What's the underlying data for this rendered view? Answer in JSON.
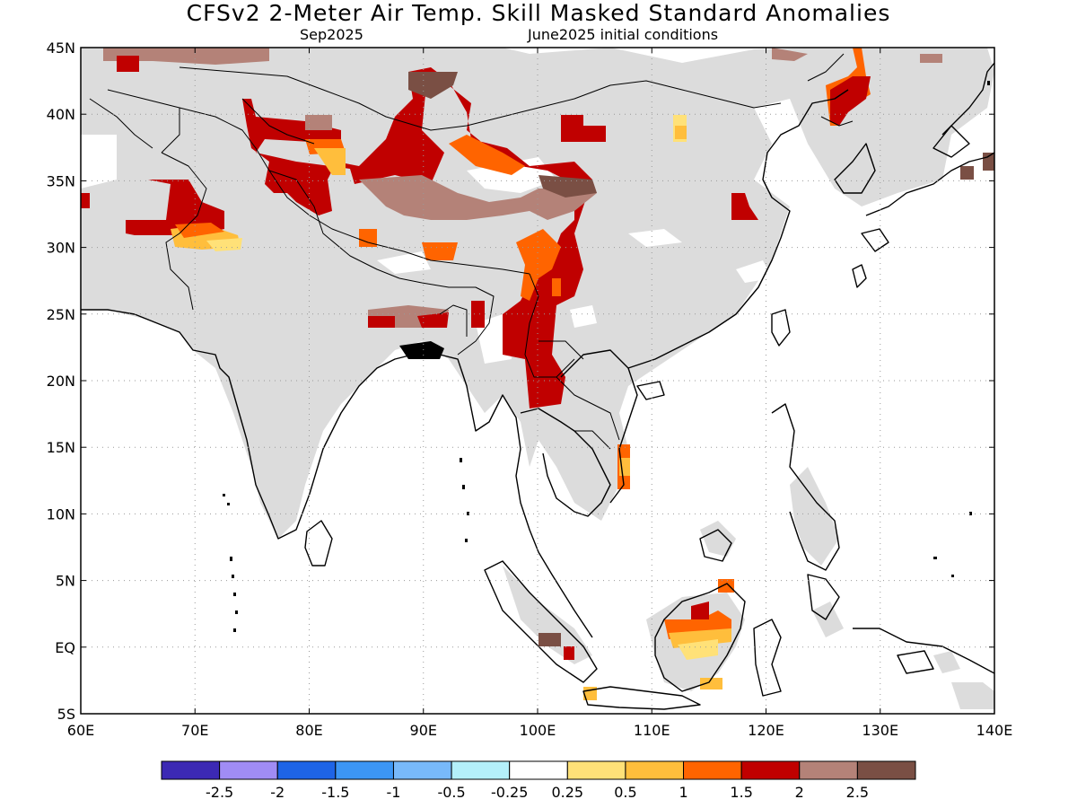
{
  "title": "CFSv2 2-Meter Air Temp. Skill Masked Standard Anomalies",
  "subtitle_left": "Sep2025",
  "subtitle_right": "June2025 initial conditions",
  "lat_labels": [
    "45N",
    "40N",
    "35N",
    "30N",
    "25N",
    "20N",
    "15N",
    "10N",
    "5N",
    "EQ",
    "5S"
  ],
  "lon_labels": [
    "60E",
    "70E",
    "80E",
    "90E",
    "100E",
    "110E",
    "120E",
    "130E",
    "140E"
  ],
  "colorbar": {
    "colors": [
      "#3c29b4",
      "#a08cf5",
      "#1e64e6",
      "#3c96f5",
      "#78b9fa",
      "#b4f0fa",
      "#ffffff",
      "#ffe178",
      "#ffbe3c",
      "#ff6400",
      "#c00000",
      "#b48278",
      "#7a4f44"
    ],
    "labels": [
      "-2.5",
      "-2",
      "-1.5",
      "-1",
      "-0.5",
      "-0.25",
      "0.25",
      "0.5",
      "1",
      "1.5",
      "2",
      "2.5"
    ]
  },
  "colors": {
    "skill_mask": "#dcdcdc",
    "land_outline": "#000000"
  }
}
